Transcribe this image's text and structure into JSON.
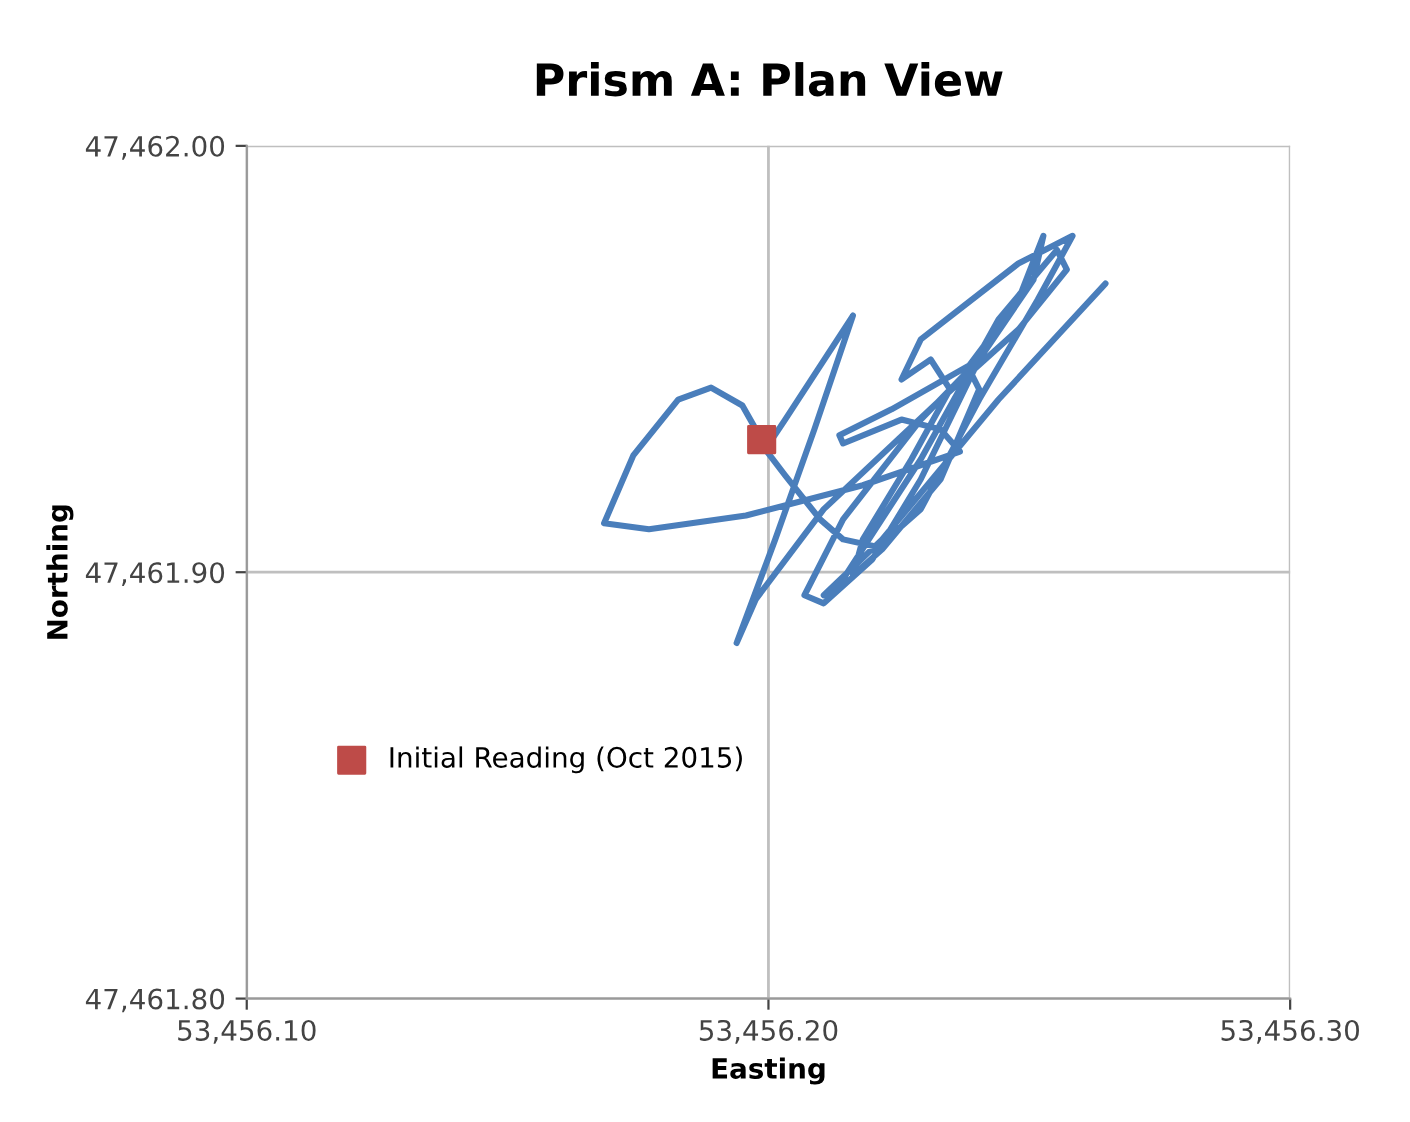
{
  "chart_data": {
    "type": "line",
    "title": "Prism A: Plan View",
    "xlabel": "Easting",
    "ylabel": "Northing",
    "xlim": [
      53456.1,
      53456.3
    ],
    "ylim": [
      47461.8,
      47462.0
    ],
    "xticks": [
      {
        "value": 53456.1,
        "label": "53,456.10"
      },
      {
        "value": 53456.2,
        "label": "53,456.20"
      },
      {
        "value": 53456.3,
        "label": "53,456.30"
      }
    ],
    "yticks": [
      {
        "value": 47461.8,
        "label": "47,461.80"
      },
      {
        "value": 47461.9,
        "label": "47,461.90"
      },
      {
        "value": 47462.0,
        "label": "47,462.00"
      }
    ],
    "grid": true,
    "legend": "left",
    "line_style": "solid",
    "series": [
      {
        "color": "#4a7ebb",
        "marker": "none",
        "x": [
          53456.1987,
          53456.195,
          53456.189,
          53456.1827,
          53456.1741,
          53456.1685,
          53456.1771,
          53456.1957,
          53456.2181,
          53456.2367,
          53456.233,
          53456.2255,
          53456.2143,
          53456.2136,
          53456.2236,
          53456.2385,
          53456.2479,
          53456.2527,
          53456.2508,
          53456.2404,
          53456.2292,
          53456.2199,
          53456.2106,
          53456.2069,
          53456.2143,
          53456.2292,
          53456.2385,
          53456.2404,
          53456.233,
          53456.2218,
          53456.2162,
          53456.2181,
          53456.2274,
          53456.2348,
          53456.2311,
          53456.2255,
          53456.2292,
          53456.2479,
          53456.2583,
          53456.2516,
          53456.2404,
          53456.2292,
          53456.221,
          53456.2143,
          53456.2099,
          53456.2032,
          53456.1994,
          53456.2032,
          53456.2162,
          53456.2088,
          53456.2013,
          53456.1939,
          53456.1976,
          53456.2106,
          53456.233,
          53456.2479,
          53456.2572,
          53456.2553,
          53456.2441,
          53456.2292,
          53456.2143,
          53456.2106,
          53456.2218,
          53456.2441,
          53456.2646
        ],
        "values": [
          47461.9311,
          47461.9391,
          47461.9433,
          47461.9405,
          47461.9274,
          47461.9115,
          47461.9101,
          47461.9133,
          47461.9204,
          47461.9283,
          47461.9335,
          47461.9358,
          47461.9302,
          47461.9321,
          47461.9382,
          47461.9485,
          47461.9639,
          47461.9789,
          47461.9686,
          47461.9499,
          47461.9218,
          47461.903,
          47461.8927,
          47461.8946,
          47461.9124,
          47461.9358,
          47461.9475,
          47461.9429,
          47461.9218,
          47461.9054,
          47461.8993,
          47461.9077,
          47461.9265,
          47461.9429,
          47461.9499,
          47461.9452,
          47461.9546,
          47461.9724,
          47461.9789,
          47461.9639,
          47461.9405,
          47461.9148,
          47461.9059,
          47461.9077,
          47461.9124,
          47461.9227,
          47461.9288,
          47461.9358,
          47461.9602,
          47461.9335,
          47461.9077,
          47461.8834,
          47461.8937,
          47461.9148,
          47461.9405,
          47461.9569,
          47461.971,
          47461.9756,
          47461.9593,
          47461.9265,
          47461.8984,
          47461.8946,
          47461.9077,
          47461.9405,
          47461.9677
        ]
      },
      {
        "type": "scatter",
        "name": "Initial Reading (Oct 2015)",
        "color": "#be4b48",
        "marker": "square",
        "x": [
          53456.1987
        ],
        "values": [
          47461.9311
        ]
      }
    ]
  }
}
